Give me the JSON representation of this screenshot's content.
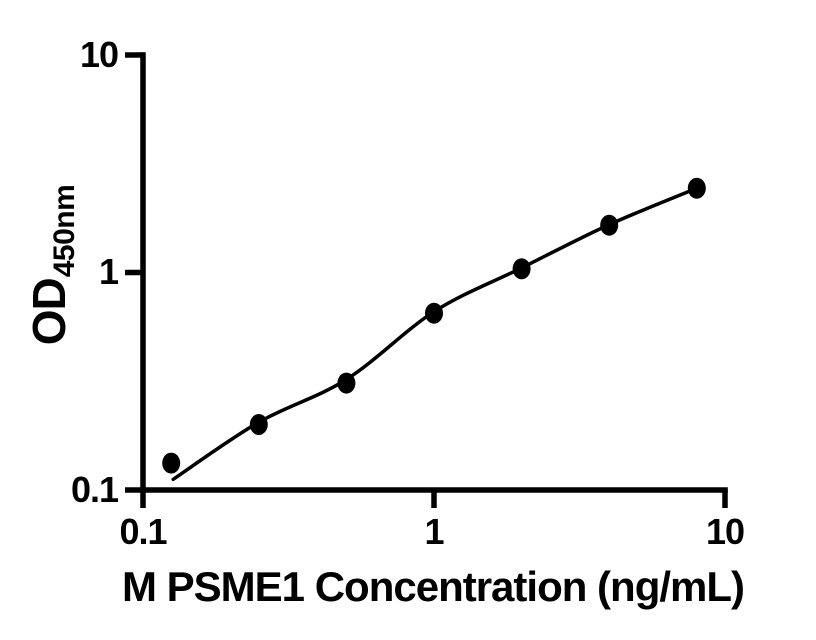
{
  "chart_data": {
    "type": "scatter",
    "title": "",
    "xlabel": "M PSME1 Concentration (ng/mL)",
    "ylabel": "OD",
    "ylabel_subscript": "450nm",
    "xscale": "log",
    "yscale": "log",
    "xlim": [
      0.1,
      10
    ],
    "ylim": [
      0.1,
      10
    ],
    "x_tick_values": [
      0.1,
      1,
      10
    ],
    "x_tick_labels": [
      "0.1",
      "1",
      "10"
    ],
    "y_tick_values": [
      10,
      1,
      0.1
    ],
    "y_tick_labels": [
      "10",
      "1",
      "0.1"
    ],
    "grid": false,
    "legend": false,
    "x": [
      0.125,
      0.25,
      0.5,
      1,
      2,
      4,
      8
    ],
    "y": [
      0.133,
      0.2,
      0.31,
      0.65,
      1.04,
      1.65,
      2.44
    ],
    "fit_curve": {
      "x": [
        0.127,
        0.25,
        0.5,
        1,
        2,
        4,
        8
      ],
      "y": [
        0.112,
        0.205,
        0.322,
        0.66,
        1.05,
        1.66,
        2.44
      ]
    },
    "marker_color": "#000000",
    "line_color": "#000000",
    "axis_color": "#000000",
    "background_color": "#ffffff"
  }
}
